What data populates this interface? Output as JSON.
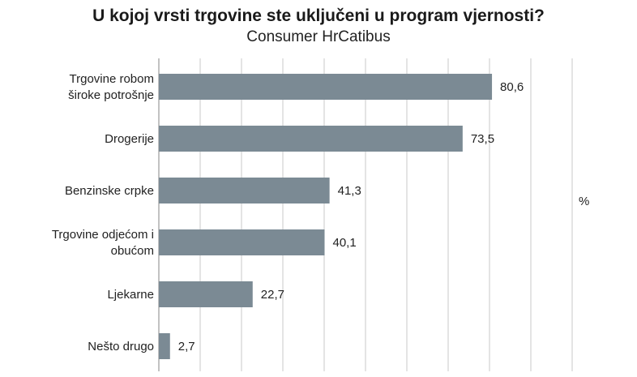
{
  "colors": {
    "bar": "#7b8a94",
    "grid": "#c8c8c8",
    "axis": "#9a9a9a",
    "text": "#222222"
  },
  "chart_data": {
    "type": "bar",
    "orientation": "horizontal",
    "title": "U kojoj vrsti trgovine ste uključeni u program vjernosti?",
    "subtitle": "Consumer HrCatibus",
    "unit_label": "%",
    "categories": [
      [
        "Trgovine robom",
        "široke potrošnje"
      ],
      [
        "Drogerije"
      ],
      [
        "Benzinske crpke"
      ],
      [
        "Trgovine odjećom i",
        "obućom"
      ],
      [
        "Ljekarne"
      ],
      [
        "Nešto drugo"
      ]
    ],
    "values": [
      80.6,
      73.5,
      41.3,
      40.1,
      22.7,
      2.7
    ],
    "value_labels": [
      "80,6",
      "73,5",
      "41,3",
      "40,1",
      "22,7",
      "2,7"
    ],
    "xlim": [
      0,
      100
    ],
    "grid_step": 10,
    "grid": true
  }
}
